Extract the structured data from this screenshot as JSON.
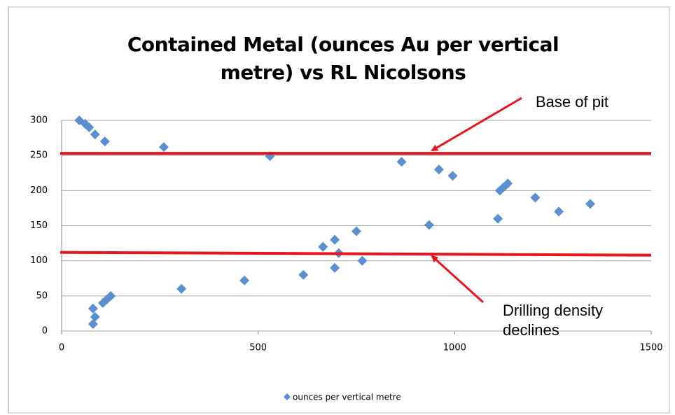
{
  "chart_data": {
    "type": "scatter",
    "title": "Contained Metal (ounces Au per vertical metre) vs RL Nicolsons",
    "annotations": [
      "Base of pit",
      "Drilling density declines"
    ],
    "series": [
      {
        "name": "ounces per vertical metre",
        "color": "#5b8fd0",
        "x": [
          45,
          60,
          70,
          85,
          110,
          260,
          530,
          865,
          960,
          995,
          1115,
          1125,
          1135,
          1205,
          1265,
          1345,
          1110,
          935,
          750,
          695,
          665,
          705,
          695,
          765,
          615,
          465,
          305,
          125,
          115,
          105,
          80,
          85,
          80
        ],
        "values": [
          300,
          295,
          290,
          280,
          270,
          262,
          249,
          241,
          230,
          221,
          200,
          205,
          210,
          190,
          170,
          181,
          160,
          151,
          142,
          130,
          120,
          111,
          90,
          100,
          80,
          72,
          60,
          50,
          45,
          40,
          32,
          20,
          10
        ]
      }
    ],
    "reference_lines": [
      {
        "color": "#e8141c",
        "values": [
          253,
          253
        ]
      },
      {
        "color": "#e8141c",
        "values": [
          112,
          108
        ]
      }
    ],
    "xlim": [
      0,
      1500
    ],
    "xticks": [
      0,
      500,
      1000,
      1500
    ],
    "ylim": [
      0,
      300
    ],
    "yticks": [
      0,
      50,
      100,
      150,
      200,
      250,
      300
    ],
    "grid": true,
    "legend": "bottom"
  }
}
